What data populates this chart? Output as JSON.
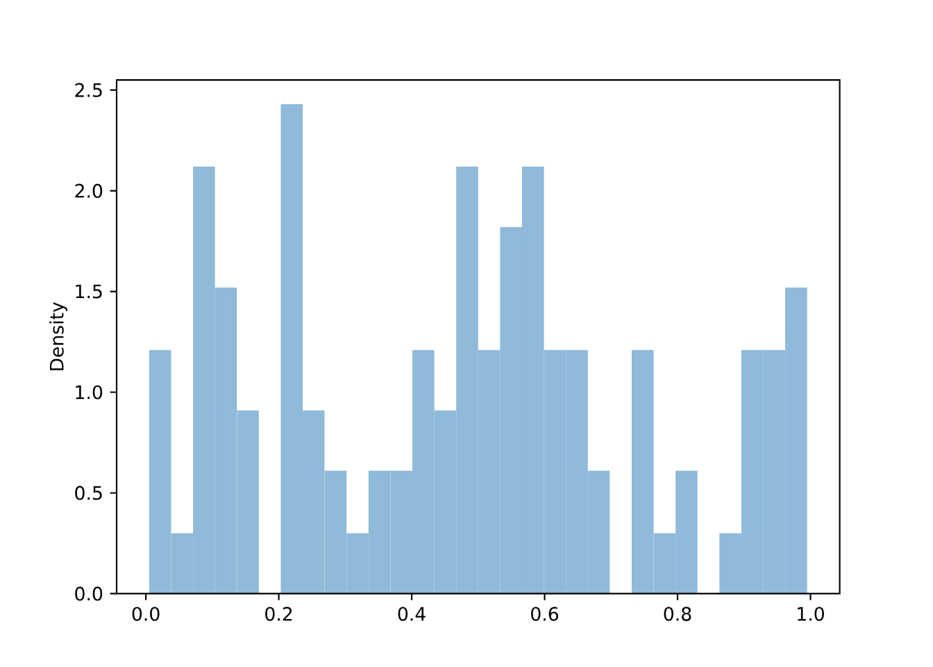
{
  "chart_data": {
    "type": "histogram",
    "ylabel": "Density",
    "color": "#8fbad9",
    "bins": [
      0.005,
      0.038,
      0.071,
      0.104,
      0.137,
      0.17,
      0.203,
      0.236,
      0.269,
      0.302,
      0.335,
      0.368,
      0.401,
      0.434,
      0.467,
      0.5,
      0.533,
      0.566,
      0.599,
      0.632,
      0.665,
      0.698,
      0.731,
      0.764,
      0.797,
      0.83,
      0.863,
      0.896,
      0.929,
      0.962,
      0.995
    ],
    "values": [
      1.21,
      0.3,
      2.12,
      1.52,
      0.91,
      0,
      2.43,
      0.91,
      0.61,
      0.3,
      0.61,
      0.61,
      1.21,
      0.91,
      2.12,
      1.21,
      1.82,
      2.12,
      1.21,
      1.21,
      0.61,
      0,
      1.21,
      0.3,
      0.61,
      0,
      0.3,
      1.21,
      1.21,
      1.52
    ],
    "xlim": [
      -0.044,
      1.044
    ],
    "ylim": [
      0,
      2.55
    ],
    "xticks": [
      {
        "value": 0,
        "label": "0.0"
      },
      {
        "value": 0.2,
        "label": "0.2"
      },
      {
        "value": 0.4,
        "label": "0.4"
      },
      {
        "value": 0.6,
        "label": "0.6"
      },
      {
        "value": 0.8,
        "label": "0.8"
      },
      {
        "value": 1,
        "label": "1.0"
      }
    ],
    "yticks": [
      {
        "value": 0,
        "label": "0.0"
      },
      {
        "value": 0.5,
        "label": "0.5"
      },
      {
        "value": 1,
        "label": "1.0"
      },
      {
        "value": 1.5,
        "label": "1.5"
      },
      {
        "value": 2,
        "label": "2.0"
      },
      {
        "value": 2.5,
        "label": "2.5"
      }
    ]
  }
}
